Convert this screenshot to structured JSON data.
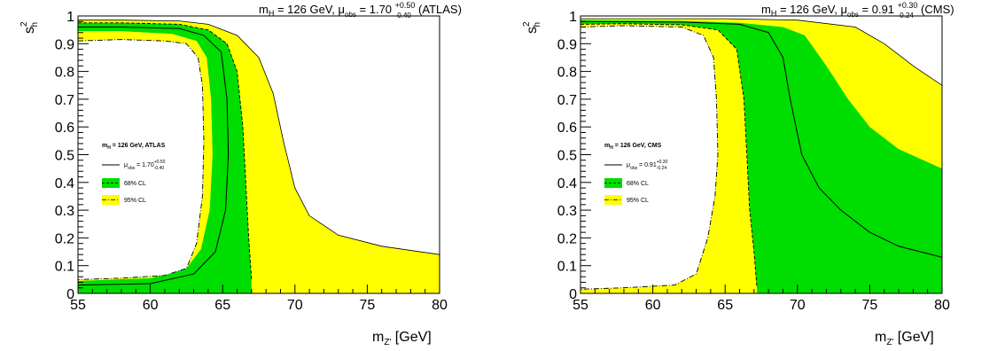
{
  "chart_data": [
    {
      "type": "area",
      "title": {
        "prefix": "m",
        "prefix_sub": "H",
        "mid": " = 126 GeV,  μ",
        "mid_sub": "obs",
        "value": " = 1.70",
        "err_up": "+0.50",
        "err_down": "-0.40",
        "suffix": "(ATLAS)"
      },
      "xlabel": {
        "main": "m",
        "sub": "Z'",
        "unit": " [GeV]"
      },
      "ylabel": {
        "main": "s",
        "sup": "2",
        "sub": "h"
      },
      "xlim": [
        55,
        80
      ],
      "ylim": [
        0,
        1
      ],
      "xticks": [
        "55",
        "60",
        "65",
        "70",
        "75",
        "80"
      ],
      "yticks": [
        "0",
        "0.1",
        "0.2",
        "0.3",
        "0.4",
        "0.5",
        "0.6",
        "0.7",
        "0.8",
        "0.9",
        "1"
      ],
      "legend": {
        "position": "left",
        "header": {
          "main": "m",
          "sub": "H",
          "rest": " = 126 GeV, ATLAS"
        },
        "obs": {
          "main": "μ",
          "sub": "obs",
          "value": " = 1.70",
          "up": "+0.50",
          "down": "-0.40"
        },
        "cl68": "68% CL",
        "cl95": "95% CL"
      },
      "colors": {
        "cl95": "#ffff00",
        "cl68": "#00dd00"
      },
      "regions": {
        "yellow_outer": [
          [
            55,
            0.985
          ],
          [
            58,
            0.985
          ],
          [
            62,
            0.982
          ],
          [
            64,
            0.97
          ],
          [
            66,
            0.93
          ],
          [
            67.5,
            0.85
          ],
          [
            68.5,
            0.72
          ],
          [
            69.2,
            0.55
          ],
          [
            70,
            0.38
          ],
          [
            71,
            0.28
          ],
          [
            73,
            0.21
          ],
          [
            76,
            0.17
          ],
          [
            80,
            0.14
          ],
          [
            80,
            0
          ],
          [
            55,
            0
          ]
        ],
        "yellow_inner": [
          [
            55,
            0.91
          ],
          [
            58,
            0.915
          ],
          [
            61,
            0.91
          ],
          [
            62.5,
            0.9
          ],
          [
            63.3,
            0.85
          ],
          [
            63.6,
            0.75
          ],
          [
            63.7,
            0.55
          ],
          [
            63.6,
            0.35
          ],
          [
            63.2,
            0.18
          ],
          [
            62.5,
            0.09
          ],
          [
            61,
            0.065
          ],
          [
            58,
            0.055
          ],
          [
            55,
            0.05
          ]
        ],
        "green_outer": [
          [
            55,
            0.975
          ],
          [
            58,
            0.975
          ],
          [
            62,
            0.97
          ],
          [
            64,
            0.95
          ],
          [
            65.3,
            0.9
          ],
          [
            66,
            0.8
          ],
          [
            66.4,
            0.6
          ],
          [
            66.6,
            0.4
          ],
          [
            66.8,
            0.2
          ],
          [
            67,
            0.05
          ],
          [
            67,
            0
          ],
          [
            55,
            0
          ]
        ],
        "green_inner": [
          [
            55,
            0.945
          ],
          [
            58,
            0.945
          ],
          [
            61.5,
            0.935
          ],
          [
            63.2,
            0.91
          ],
          [
            63.9,
            0.85
          ],
          [
            64.2,
            0.7
          ],
          [
            64.3,
            0.5
          ],
          [
            64.1,
            0.3
          ],
          [
            63.5,
            0.16
          ],
          [
            62.5,
            0.09
          ],
          [
            60,
            0.055
          ],
          [
            55,
            0.045
          ]
        ]
      },
      "curves": {
        "central": [
          [
            55,
            0.96
          ],
          [
            58,
            0.96
          ],
          [
            62,
            0.955
          ],
          [
            63.7,
            0.93
          ],
          [
            64.9,
            0.87
          ],
          [
            65.3,
            0.7
          ],
          [
            65.4,
            0.5
          ],
          [
            65.2,
            0.3
          ],
          [
            64.5,
            0.15
          ],
          [
            63,
            0.07
          ],
          [
            60,
            0.035
          ],
          [
            55,
            0.03
          ]
        ],
        "dashed_68": [
          [
            55,
            0.975
          ],
          [
            58,
            0.975
          ],
          [
            62,
            0.97
          ],
          [
            64,
            0.95
          ],
          [
            65.3,
            0.9
          ],
          [
            66,
            0.8
          ],
          [
            66.4,
            0.6
          ],
          [
            66.6,
            0.4
          ],
          [
            66.8,
            0.2
          ],
          [
            67,
            0.05
          ]
        ],
        "dashdot_95": [
          [
            55,
            0.91
          ],
          [
            58,
            0.915
          ],
          [
            61,
            0.91
          ],
          [
            62.5,
            0.9
          ],
          [
            63.3,
            0.85
          ],
          [
            63.6,
            0.75
          ],
          [
            63.7,
            0.55
          ],
          [
            63.6,
            0.35
          ],
          [
            63.2,
            0.18
          ],
          [
            62.5,
            0.09
          ],
          [
            61,
            0.065
          ],
          [
            58,
            0.055
          ],
          [
            55,
            0.05
          ]
        ]
      }
    },
    {
      "type": "area",
      "title": {
        "prefix": "m",
        "prefix_sub": "H",
        "mid": " = 126 GeV,  μ",
        "mid_sub": "obs",
        "value": " = 0.91",
        "err_up": "+0.30",
        "err_down": "-0.24",
        "suffix": "(CMS)"
      },
      "xlabel": {
        "main": "m",
        "sub": "Z'",
        "unit": " [GeV]"
      },
      "ylabel": {
        "main": "s",
        "sup": "2",
        "sub": "h"
      },
      "xlim": [
        55,
        80
      ],
      "ylim": [
        0,
        1
      ],
      "xticks": [
        "55",
        "60",
        "65",
        "70",
        "75",
        "80"
      ],
      "yticks": [
        "0",
        "0.1",
        "0.2",
        "0.3",
        "0.4",
        "0.5",
        "0.6",
        "0.7",
        "0.8",
        "0.9",
        "1"
      ],
      "legend": {
        "position": "left",
        "header": {
          "main": "m",
          "sub": "H",
          "rest": " = 126 GeV, CMS"
        },
        "obs": {
          "main": "μ",
          "sub": "obs",
          "value": " = 0.91",
          "up": "+0.30",
          "down": "-0.24"
        },
        "cl68": "68% CL",
        "cl95": "95% CL"
      },
      "colors": {
        "cl95": "#ffff00",
        "cl68": "#00dd00"
      },
      "regions": {
        "yellow_outer": [
          [
            55,
            0.99
          ],
          [
            65,
            0.99
          ],
          [
            70,
            0.985
          ],
          [
            74,
            0.96
          ],
          [
            76,
            0.9
          ],
          [
            78,
            0.82
          ],
          [
            80,
            0.75
          ],
          [
            80,
            0
          ],
          [
            55,
            0
          ]
        ],
        "yellow_inner": [
          [
            55,
            0.96
          ],
          [
            58,
            0.965
          ],
          [
            62,
            0.96
          ],
          [
            63.5,
            0.93
          ],
          [
            64.2,
            0.85
          ],
          [
            64.4,
            0.7
          ],
          [
            64.5,
            0.5
          ],
          [
            64.3,
            0.35
          ],
          [
            63.8,
            0.2
          ],
          [
            63,
            0.07
          ],
          [
            61.5,
            0.03
          ],
          [
            58,
            0.02
          ],
          [
            55,
            0.015
          ]
        ],
        "green_outer": [
          [
            55,
            0.985
          ],
          [
            62,
            0.982
          ],
          [
            66,
            0.975
          ],
          [
            69,
            0.96
          ],
          [
            70.5,
            0.93
          ],
          [
            72,
            0.82
          ],
          [
            73.5,
            0.7
          ],
          [
            75,
            0.6
          ],
          [
            77,
            0.52
          ],
          [
            80,
            0.45
          ],
          [
            80,
            0
          ],
          [
            55,
            0
          ]
        ],
        "green_inner": [
          [
            55,
            0.97
          ],
          [
            58,
            0.972
          ],
          [
            62,
            0.968
          ],
          [
            64.5,
            0.95
          ],
          [
            65.8,
            0.88
          ],
          [
            66.3,
            0.7
          ],
          [
            66.5,
            0.5
          ],
          [
            66.7,
            0.3
          ],
          [
            67,
            0.15
          ],
          [
            67.2,
            0.02
          ],
          [
            67.2,
            0
          ],
          [
            55,
            0
          ]
        ],
        "white_core": [
          [
            55,
            0.96
          ],
          [
            58,
            0.965
          ],
          [
            62,
            0.96
          ],
          [
            63.5,
            0.93
          ],
          [
            64.2,
            0.85
          ],
          [
            64.4,
            0.7
          ],
          [
            64.5,
            0.5
          ],
          [
            64.3,
            0.35
          ],
          [
            63.8,
            0.2
          ],
          [
            63,
            0.07
          ],
          [
            61.5,
            0.03
          ],
          [
            58,
            0.02
          ],
          [
            55,
            0.015
          ]
        ]
      },
      "curves": {
        "central": [
          [
            55,
            0.98
          ],
          [
            62,
            0.978
          ],
          [
            66,
            0.97
          ],
          [
            68,
            0.94
          ],
          [
            69,
            0.85
          ],
          [
            69.5,
            0.7
          ],
          [
            70.3,
            0.5
          ],
          [
            71.5,
            0.38
          ],
          [
            73,
            0.3
          ],
          [
            75,
            0.22
          ],
          [
            77,
            0.17
          ],
          [
            80,
            0.13
          ]
        ],
        "dashed_68": [
          [
            55,
            0.97
          ],
          [
            58,
            0.972
          ],
          [
            62,
            0.968
          ],
          [
            64.5,
            0.95
          ],
          [
            65.8,
            0.88
          ],
          [
            66.3,
            0.7
          ],
          [
            66.5,
            0.5
          ],
          [
            66.7,
            0.3
          ],
          [
            67,
            0.15
          ],
          [
            67.2,
            0.02
          ]
        ],
        "dashdot_95": [
          [
            55,
            0.96
          ],
          [
            58,
            0.965
          ],
          [
            62,
            0.96
          ],
          [
            63.5,
            0.93
          ],
          [
            64.2,
            0.85
          ],
          [
            64.4,
            0.7
          ],
          [
            64.5,
            0.5
          ],
          [
            64.3,
            0.35
          ],
          [
            63.8,
            0.2
          ],
          [
            63,
            0.07
          ],
          [
            61.5,
            0.03
          ],
          [
            58,
            0.02
          ],
          [
            55,
            0.015
          ]
        ]
      }
    }
  ]
}
